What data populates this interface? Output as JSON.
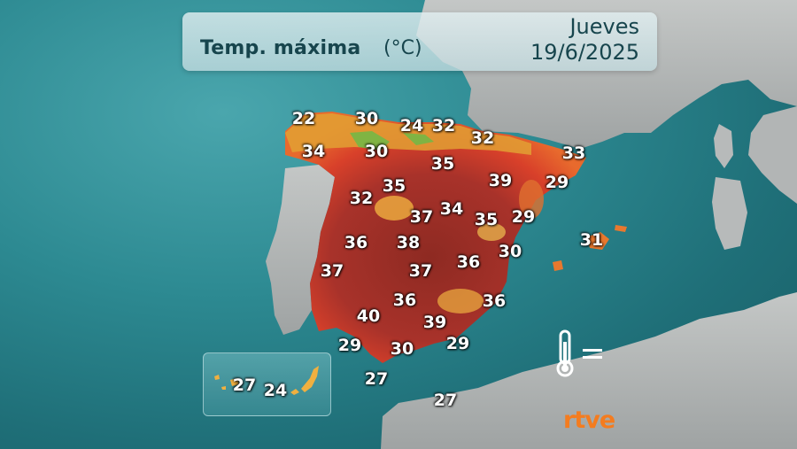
{
  "header": {
    "title": "Temp. máxima",
    "unit": "(°C)",
    "day": "Jueves",
    "date": "19/6/2025"
  },
  "temperatures": [
    {
      "value": "22"
    },
    {
      "value": "30"
    },
    {
      "value": "24"
    },
    {
      "value": "32"
    },
    {
      "value": "32"
    },
    {
      "value": "34"
    },
    {
      "value": "30"
    },
    {
      "value": "35"
    },
    {
      "value": "33"
    },
    {
      "value": "35"
    },
    {
      "value": "39"
    },
    {
      "value": "29"
    },
    {
      "value": "32"
    },
    {
      "value": "37"
    },
    {
      "value": "34"
    },
    {
      "value": "35"
    },
    {
      "value": "29"
    },
    {
      "value": "36"
    },
    {
      "value": "38"
    },
    {
      "value": "31"
    },
    {
      "value": "36"
    },
    {
      "value": "30"
    },
    {
      "value": "37"
    },
    {
      "value": "37"
    },
    {
      "value": "36"
    },
    {
      "value": "36"
    },
    {
      "value": "40"
    },
    {
      "value": "39"
    },
    {
      "value": "29"
    },
    {
      "value": "30"
    },
    {
      "value": "29"
    },
    {
      "value": "27"
    },
    {
      "value": "27"
    }
  ],
  "canarias": [
    {
      "value": "27"
    },
    {
      "value": "24"
    }
  ],
  "logo": "rtve",
  "colors": {
    "sea": "#2d8a92",
    "land_outside": "#b9bcbc",
    "heat_extreme": "#8e2a22",
    "heat_high": "#d8402a",
    "heat_mid": "#f0a033",
    "heat_low": "#f5e04a",
    "cool": "#5fbf4a",
    "logo": "#f47c1f"
  }
}
